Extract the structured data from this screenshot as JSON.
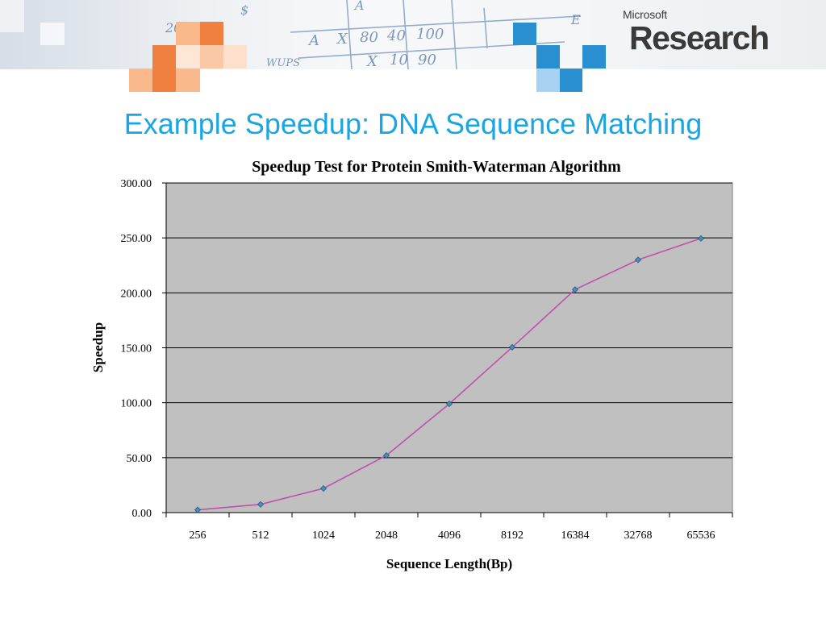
{
  "header": {
    "logo_small": "Microsoft",
    "logo_big": "Research"
  },
  "slide": {
    "title": "Example Speedup: DNA Sequence Matching"
  },
  "chart_data": {
    "type": "line",
    "title": "Speedup Test for Protein Smith-Waterman Algorithm",
    "xlabel": "Sequence Length(Bp)",
    "ylabel": "Speedup",
    "categories": [
      "256",
      "512",
      "1024",
      "2048",
      "4096",
      "8192",
      "16384",
      "32768",
      "65536"
    ],
    "series": [
      {
        "values": [
          2.5,
          7.5,
          22.0,
          52.0,
          99.0,
          150.5,
          203.0,
          230.0,
          249.5
        ]
      }
    ],
    "ylim": [
      0,
      300
    ],
    "yticks": [
      "0.00",
      "50.00",
      "100.00",
      "150.00",
      "200.00",
      "250.00",
      "300.00"
    ],
    "grid": "horizontal",
    "colors": {
      "line": "#c050b0",
      "marker": "#4a90b8",
      "plot_bg": "#c0c0c0"
    }
  }
}
